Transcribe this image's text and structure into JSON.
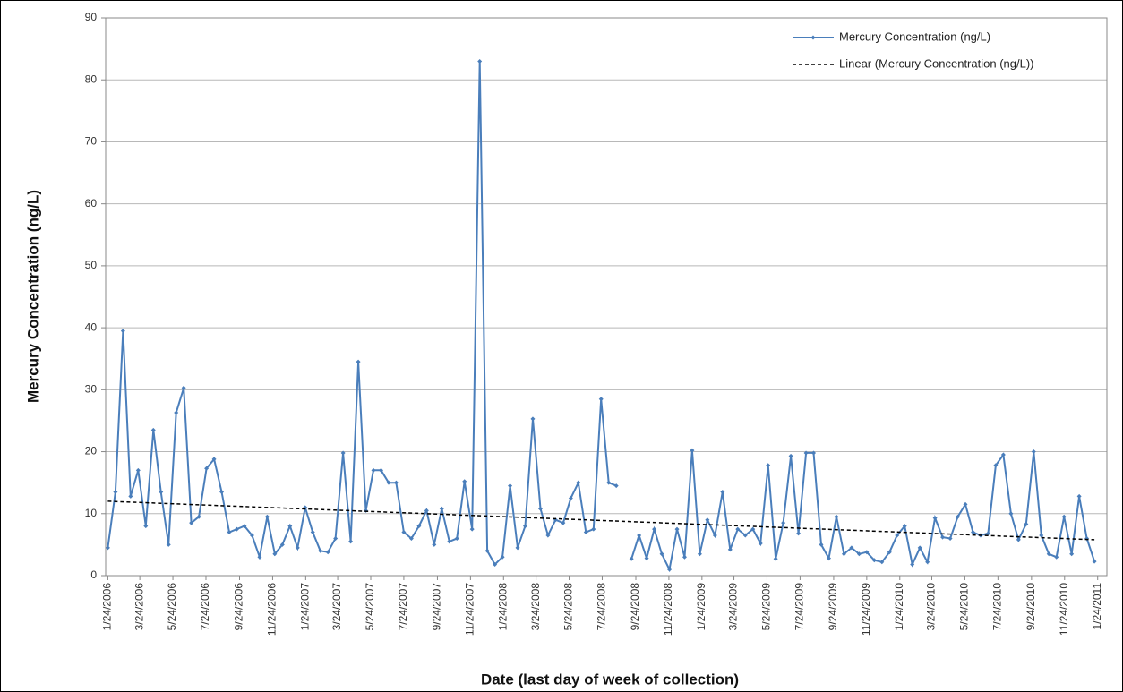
{
  "chart_data": {
    "type": "line",
    "y_label": "Mercury Concentration (ng/L)",
    "x_label": "Date (last day of week of collection)",
    "x": [
      "2006-01-24",
      "2006-02-07",
      "2006-02-21",
      "2006-03-07",
      "2006-03-21",
      "2006-04-04",
      "2006-04-18",
      "2006-05-02",
      "2006-05-16",
      "2006-05-30",
      "2006-06-13",
      "2006-06-27",
      "2006-07-11",
      "2006-07-25",
      "2006-08-08",
      "2006-08-22",
      "2006-09-05",
      "2006-09-19",
      "2006-10-03",
      "2006-10-17",
      "2006-10-31",
      "2006-11-14",
      "2006-11-28",
      "2006-12-12",
      "2006-12-26",
      "2007-01-09",
      "2007-01-23",
      "2007-02-06",
      "2007-02-20",
      "2007-03-06",
      "2007-03-20",
      "2007-04-03",
      "2007-04-17",
      "2007-05-01",
      "2007-05-15",
      "2007-05-29",
      "2007-06-12",
      "2007-06-26",
      "2007-07-10",
      "2007-07-24",
      "2007-08-07",
      "2007-08-21",
      "2007-09-04",
      "2007-09-18",
      "2007-10-02",
      "2007-10-16",
      "2007-10-30",
      "2007-11-13",
      "2007-11-27",
      "2007-12-11",
      "2007-12-25",
      "2008-01-08",
      "2008-01-22",
      "2008-02-05",
      "2008-02-19",
      "2008-03-04",
      "2008-03-18",
      "2008-04-01",
      "2008-04-15",
      "2008-04-29",
      "2008-05-13",
      "2008-05-27",
      "2008-06-10",
      "2008-06-24",
      "2008-07-08",
      "2008-07-22",
      "2008-08-05",
      "2008-08-19",
      "2008-09-02",
      "2008-09-16",
      "2008-09-30",
      "2008-10-14",
      "2008-10-28",
      "2008-11-11",
      "2008-11-25",
      "2008-12-09",
      "2008-12-23",
      "2009-01-06",
      "2009-01-20",
      "2009-02-03",
      "2009-02-17",
      "2009-03-03",
      "2009-03-17",
      "2009-03-31",
      "2009-04-14",
      "2009-04-28",
      "2009-05-12",
      "2009-05-26",
      "2009-06-09",
      "2009-06-23",
      "2009-07-07",
      "2009-07-21",
      "2009-08-04",
      "2009-08-18",
      "2009-09-01",
      "2009-09-15",
      "2009-09-29",
      "2009-10-13",
      "2009-10-27",
      "2009-11-10",
      "2009-11-24",
      "2009-12-08",
      "2009-12-22",
      "2010-01-05",
      "2010-01-19",
      "2010-02-02",
      "2010-02-16",
      "2010-03-02",
      "2010-03-16",
      "2010-03-30",
      "2010-04-13",
      "2010-04-27",
      "2010-05-11",
      "2010-05-25",
      "2010-06-08",
      "2010-06-22",
      "2010-07-06",
      "2010-07-20",
      "2010-08-03",
      "2010-08-17",
      "2010-08-31",
      "2010-09-14",
      "2010-09-28",
      "2010-10-12",
      "2010-10-26",
      "2010-11-09",
      "2010-11-23",
      "2010-12-07",
      "2010-12-21",
      "2011-01-04",
      "2011-01-18"
    ],
    "series": [
      {
        "name": "Mercury Concentration (ng/L)",
        "color": "#4a7ebb",
        "values": [
          4.5,
          13.5,
          39.5,
          12.8,
          17,
          8,
          23.5,
          13.5,
          5,
          26.3,
          30.3,
          8.5,
          9.5,
          17.3,
          18.8,
          13.5,
          7,
          7.5,
          8,
          6.5,
          3,
          9.5,
          3.5,
          5,
          8,
          4.5,
          11,
          7,
          4,
          3.8,
          6,
          19.8,
          5.5,
          34.5,
          10.5,
          17,
          17,
          15,
          15,
          7,
          6,
          8,
          10.5,
          5,
          10.8,
          5.5,
          6,
          15.2,
          7.5,
          83,
          4,
          1.8,
          3,
          14.5,
          4.5,
          8,
          25.3,
          10.8,
          6.5,
          9,
          8.5,
          12.5,
          15,
          7,
          7.5,
          28.5,
          15,
          14.5,
          null,
          2.7,
          6.5,
          2.8,
          7.5,
          3.5,
          1,
          7.5,
          3,
          20.2,
          3.5,
          9,
          6.5,
          13.5,
          4.2,
          7.5,
          6.5,
          7.5,
          5.2,
          17.8,
          2.7,
          8.5,
          19.3,
          6.8,
          19.8,
          19.8,
          5,
          2.8,
          9.5,
          3.5,
          4.5,
          3.5,
          3.8,
          2.5,
          2.2,
          3.8,
          6.5,
          8,
          1.8,
          4.5,
          2.2,
          9.3,
          6.2,
          6,
          9.5,
          11.5,
          7,
          6.5,
          6.8,
          17.8,
          19.5,
          10,
          5.8,
          8.3,
          20,
          6.5,
          3.5,
          3,
          9.5,
          3.5,
          12.8,
          6,
          2.3
        ]
      },
      {
        "name": "Linear (Mercury Concentration (ng/L))",
        "color": "#000000",
        "dash": true,
        "x": [
          "2006-01-24",
          "2011-01-18"
        ],
        "values": [
          12,
          5.8
        ]
      }
    ],
    "xlim": [
      "2006-01-20",
      "2011-02-10"
    ],
    "xticks": [
      {
        "value": "2006-01-24",
        "label": "1/24/2006"
      },
      {
        "value": "2006-03-24",
        "label": "3/24/2006"
      },
      {
        "value": "2006-05-24",
        "label": "5/24/2006"
      },
      {
        "value": "2006-07-24",
        "label": "7/24/2006"
      },
      {
        "value": "2006-09-24",
        "label": "9/24/2006"
      },
      {
        "value": "2006-11-24",
        "label": "11/24/2006"
      },
      {
        "value": "2007-01-24",
        "label": "1/24/2007"
      },
      {
        "value": "2007-03-24",
        "label": "3/24/2007"
      },
      {
        "value": "2007-05-24",
        "label": "5/24/2007"
      },
      {
        "value": "2007-07-24",
        "label": "7/24/2007"
      },
      {
        "value": "2007-09-24",
        "label": "9/24/2007"
      },
      {
        "value": "2007-11-24",
        "label": "11/24/2007"
      },
      {
        "value": "2008-01-24",
        "label": "1/24/2008"
      },
      {
        "value": "2008-03-24",
        "label": "3/24/2008"
      },
      {
        "value": "2008-05-24",
        "label": "5/24/2008"
      },
      {
        "value": "2008-07-24",
        "label": "7/24/2008"
      },
      {
        "value": "2008-09-24",
        "label": "9/24/2008"
      },
      {
        "value": "2008-11-24",
        "label": "11/24/2008"
      },
      {
        "value": "2009-01-24",
        "label": "1/24/2009"
      },
      {
        "value": "2009-03-24",
        "label": "3/24/2009"
      },
      {
        "value": "2009-05-24",
        "label": "5/24/2009"
      },
      {
        "value": "2009-07-24",
        "label": "7/24/2009"
      },
      {
        "value": "2009-09-24",
        "label": "9/24/2009"
      },
      {
        "value": "2009-11-24",
        "label": "11/24/2009"
      },
      {
        "value": "2010-01-24",
        "label": "1/24/2010"
      },
      {
        "value": "2010-03-24",
        "label": "3/24/2010"
      },
      {
        "value": "2010-05-24",
        "label": "5/24/2010"
      },
      {
        "value": "2010-07-24",
        "label": "7/24/2010"
      },
      {
        "value": "2010-09-24",
        "label": "9/24/2010"
      },
      {
        "value": "2010-11-24",
        "label": "11/24/2010"
      },
      {
        "value": "2011-01-24",
        "label": "1/24/2011"
      }
    ],
    "ylim": [
      0,
      90
    ],
    "yticks": [
      0,
      10,
      20,
      30,
      40,
      50,
      60,
      70,
      80,
      90
    ],
    "grid": true,
    "legend": "top-right"
  }
}
